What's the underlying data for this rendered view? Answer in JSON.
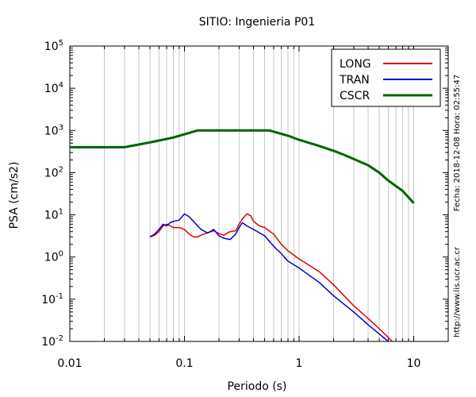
{
  "chart_data": {
    "type": "line",
    "title": "SITIO: Ingenieria P01",
    "xlabel": "Periodo (s)",
    "ylabel": "PSA (cm/s2)",
    "x_scale": "log",
    "y_scale": "log",
    "xlim": [
      0.01,
      20
    ],
    "ylim": [
      0.01,
      100000
    ],
    "grid": "vertical-minor",
    "legend_position": "top-right",
    "x_ticks": [
      {
        "value": 0.01,
        "label": "0.01"
      },
      {
        "value": 0.1,
        "label": "0.1"
      },
      {
        "value": 1,
        "label": "1"
      },
      {
        "value": 10,
        "label": "10"
      }
    ],
    "y_ticks": [
      {
        "value": 0.01,
        "base": "10",
        "exp": "-2"
      },
      {
        "value": 0.1,
        "base": "10",
        "exp": "-1"
      },
      {
        "value": 1,
        "base": "10",
        "exp": "0"
      },
      {
        "value": 10,
        "base": "10",
        "exp": "1"
      },
      {
        "value": 100,
        "base": "10",
        "exp": "2"
      },
      {
        "value": 1000,
        "base": "10",
        "exp": "3"
      },
      {
        "value": 10000,
        "base": "10",
        "exp": "4"
      },
      {
        "value": 100000,
        "base": "10",
        "exp": "5"
      }
    ],
    "side_labels": {
      "right": "Fecha: 2018-12-08 Hora: 02:55:47",
      "bottom_right": "http://www.lis.ucr.ac.cr"
    },
    "series": [
      {
        "name": "LONG",
        "color": "#e00000",
        "points": [
          [
            0.05,
            3.0
          ],
          [
            0.055,
            3.3
          ],
          [
            0.06,
            4.0
          ],
          [
            0.065,
            5.5
          ],
          [
            0.07,
            6.0
          ],
          [
            0.075,
            5.5
          ],
          [
            0.08,
            5.0
          ],
          [
            0.09,
            5.0
          ],
          [
            0.1,
            4.5
          ],
          [
            0.11,
            3.5
          ],
          [
            0.12,
            3.0
          ],
          [
            0.13,
            3.0
          ],
          [
            0.14,
            3.3
          ],
          [
            0.16,
            3.8
          ],
          [
            0.18,
            4.2
          ],
          [
            0.2,
            3.6
          ],
          [
            0.22,
            3.3
          ],
          [
            0.25,
            4.0
          ],
          [
            0.28,
            4.2
          ],
          [
            0.3,
            6.0
          ],
          [
            0.32,
            8.0
          ],
          [
            0.35,
            10.5
          ],
          [
            0.38,
            9.5
          ],
          [
            0.4,
            7.0
          ],
          [
            0.45,
            5.5
          ],
          [
            0.5,
            5.0
          ],
          [
            0.6,
            3.5
          ],
          [
            0.7,
            2.0
          ],
          [
            0.8,
            1.4
          ],
          [
            1.0,
            0.9
          ],
          [
            1.5,
            0.45
          ],
          [
            2.0,
            0.22
          ],
          [
            3.0,
            0.07
          ],
          [
            4.0,
            0.035
          ],
          [
            5.0,
            0.02
          ],
          [
            6.5,
            0.01
          ]
        ]
      },
      {
        "name": "TRAN",
        "color": "#0000d0",
        "points": [
          [
            0.05,
            3.0
          ],
          [
            0.055,
            3.5
          ],
          [
            0.06,
            4.5
          ],
          [
            0.065,
            6.0
          ],
          [
            0.07,
            5.5
          ],
          [
            0.075,
            6.5
          ],
          [
            0.08,
            7.0
          ],
          [
            0.09,
            7.5
          ],
          [
            0.1,
            10.5
          ],
          [
            0.11,
            9.0
          ],
          [
            0.12,
            7.0
          ],
          [
            0.13,
            5.5
          ],
          [
            0.14,
            4.5
          ],
          [
            0.16,
            3.7
          ],
          [
            0.18,
            4.5
          ],
          [
            0.2,
            3.2
          ],
          [
            0.22,
            2.8
          ],
          [
            0.25,
            2.6
          ],
          [
            0.28,
            3.5
          ],
          [
            0.3,
            5.0
          ],
          [
            0.32,
            6.5
          ],
          [
            0.35,
            5.5
          ],
          [
            0.4,
            4.5
          ],
          [
            0.5,
            3.2
          ],
          [
            0.6,
            1.8
          ],
          [
            0.7,
            1.2
          ],
          [
            0.8,
            0.8
          ],
          [
            1.0,
            0.55
          ],
          [
            1.5,
            0.25
          ],
          [
            2.0,
            0.12
          ],
          [
            3.0,
            0.05
          ],
          [
            4.0,
            0.025
          ],
          [
            5.0,
            0.015
          ],
          [
            6.0,
            0.01
          ]
        ]
      },
      {
        "name": "CSCR",
        "color": "#006400",
        "points": [
          [
            0.01,
            400
          ],
          [
            0.03,
            400
          ],
          [
            0.05,
            520
          ],
          [
            0.08,
            680
          ],
          [
            0.13,
            1000
          ],
          [
            0.55,
            1000
          ],
          [
            0.8,
            750
          ],
          [
            1.0,
            600
          ],
          [
            1.5,
            430
          ],
          [
            2.0,
            330
          ],
          [
            2.5,
            260
          ],
          [
            3.0,
            210
          ],
          [
            3.5,
            175
          ],
          [
            4.0,
            150
          ],
          [
            5.0,
            100
          ],
          [
            6.0,
            65
          ],
          [
            8.0,
            37
          ],
          [
            10.0,
            19
          ]
        ]
      }
    ]
  }
}
